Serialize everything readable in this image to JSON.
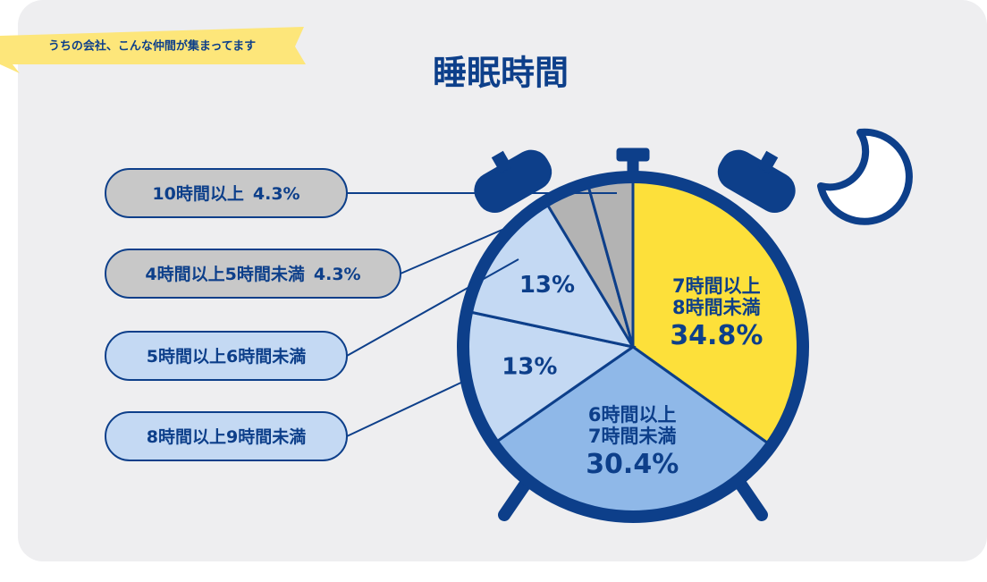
{
  "badge": "うちの会社、こんな仲間が集まってます",
  "chart_data": {
    "type": "pie",
    "title": "睡眠時間",
    "categories": [
      "7時間以上8時間未満",
      "6時間以上7時間未満",
      "8時間以上9時間未満",
      "5時間以上6時間未満",
      "4時間以上5時間未満",
      "10時間以上"
    ],
    "values": [
      34.8,
      30.4,
      13,
      13,
      4.3,
      4.3
    ],
    "value_labels": [
      "34.8%",
      "30.4%",
      "13%",
      "13%",
      "4.3%",
      "4.3%"
    ],
    "colors": [
      "#fde03a",
      "#8fb8e8",
      "#c4d9f3",
      "#c4d9f3",
      "#b3b3b3",
      "#b3b3b3"
    ]
  }
}
